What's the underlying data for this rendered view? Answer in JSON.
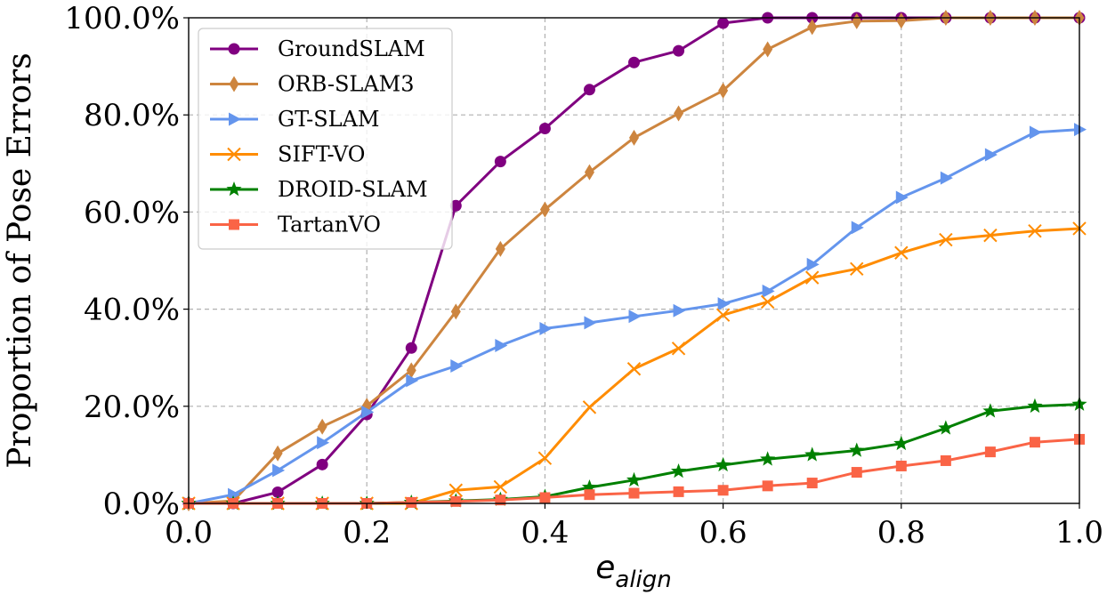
{
  "chart_data": {
    "type": "line",
    "title": "",
    "xlabel": "e",
    "xlabel_subscript": "align",
    "ylabel": "Proportion of Pose Errors",
    "xlim": [
      0.0,
      1.0
    ],
    "ylim": [
      0,
      100
    ],
    "x_ticks": [
      0.0,
      0.2,
      0.4,
      0.6,
      0.8,
      1.0
    ],
    "x_tick_labels": [
      "0.0",
      "0.2",
      "0.4",
      "0.6",
      "0.8",
      "1.0"
    ],
    "y_ticks": [
      0,
      20,
      40,
      60,
      80,
      100
    ],
    "y_tick_labels": [
      "0.0%",
      "20.0%",
      "40.0%",
      "60.0%",
      "80.0%",
      "100.0%"
    ],
    "grid": true,
    "legend_position": "top-left",
    "x": [
      0.0,
      0.05,
      0.1,
      0.15,
      0.2,
      0.25,
      0.3,
      0.35,
      0.4,
      0.45,
      0.5,
      0.55,
      0.6,
      0.65,
      0.7,
      0.75,
      0.8,
      0.85,
      0.9,
      0.95,
      1.0
    ],
    "series": [
      {
        "name": "GroundSLAM",
        "color": "#800080",
        "marker": "circle",
        "x": [
          0.0,
          0.05,
          0.1,
          0.15,
          0.2,
          0.25,
          0.3,
          0.35,
          0.4,
          0.45,
          0.5,
          0.55,
          0.6,
          0.65,
          0.7,
          0.75,
          0.8,
          0.85,
          0.9,
          0.95,
          1.0
        ],
        "values": [
          0,
          0,
          2.3,
          8,
          18.3,
          32,
          61.3,
          70.4,
          77.2,
          85.2,
          90.8,
          93.2,
          98.9,
          100,
          100,
          100,
          100,
          100,
          100,
          100,
          100
        ]
      },
      {
        "name": "ORB-SLAM3",
        "color": "#cd853f",
        "marker": "thin_diamond",
        "x": [
          0.0,
          0.05,
          0.1,
          0.15,
          0.2,
          0.25,
          0.3,
          0.35,
          0.4,
          0.45,
          0.5,
          0.55,
          0.6,
          0.65,
          0.7,
          0.75,
          0.8,
          0.85,
          0.9,
          0.95,
          1.0
        ],
        "values": [
          0,
          0.5,
          10.3,
          15.8,
          20.1,
          27.4,
          39.5,
          52.4,
          60.5,
          68.2,
          75.3,
          80.3,
          85,
          93.5,
          98.1,
          99.3,
          99.4,
          100,
          100,
          100,
          100
        ]
      },
      {
        "name": "GT-SLAM",
        "color": "#6495ed",
        "marker": "triangle_right",
        "x": [
          0.0,
          0.05,
          0.1,
          0.15,
          0.2,
          0.25,
          0.3,
          0.35,
          0.4,
          0.45,
          0.5,
          0.55,
          0.6,
          0.65,
          0.7,
          0.75,
          0.8,
          0.85,
          0.9,
          0.95,
          1.0
        ],
        "values": [
          0,
          1.8,
          6.8,
          12.5,
          18.8,
          25.3,
          28.3,
          32.5,
          36,
          37.2,
          38.5,
          39.7,
          41.1,
          43.7,
          49.2,
          56.8,
          63,
          67,
          71.8,
          76.4,
          77
        ]
      },
      {
        "name": "SIFT-VO",
        "color": "#ff8c00",
        "marker": "x",
        "x": [
          0.0,
          0.05,
          0.1,
          0.15,
          0.2,
          0.25,
          0.3,
          0.35,
          0.4,
          0.45,
          0.5,
          0.55,
          0.6,
          0.65,
          0.7,
          0.75,
          0.8,
          0.85,
          0.9,
          0.95,
          1.0
        ],
        "values": [
          0,
          0,
          0,
          0,
          0,
          0,
          2.7,
          3.4,
          9.3,
          19.8,
          27.7,
          31.9,
          38.8,
          41.5,
          46.5,
          48.3,
          51.6,
          54.3,
          55.2,
          56.1,
          56.6
        ]
      },
      {
        "name": "DROID-SLAM",
        "color": "#008000",
        "marker": "star",
        "x": [
          0.0,
          0.05,
          0.1,
          0.15,
          0.2,
          0.25,
          0.3,
          0.35,
          0.4,
          0.45,
          0.5,
          0.55,
          0.6,
          0.65,
          0.7,
          0.75,
          0.8,
          0.85,
          0.9,
          0.95,
          1.0
        ],
        "values": [
          0,
          0,
          0,
          0,
          0,
          0.2,
          0.5,
          0.8,
          1.4,
          3.3,
          4.8,
          6.6,
          7.9,
          9.1,
          10,
          10.9,
          12.3,
          15.5,
          19,
          20,
          20.4
        ]
      },
      {
        "name": "TartanVO",
        "color": "#fa6446",
        "marker": "square",
        "x": [
          0.0,
          0.05,
          0.1,
          0.15,
          0.2,
          0.25,
          0.3,
          0.35,
          0.4,
          0.45,
          0.5,
          0.55,
          0.6,
          0.65,
          0.7,
          0.75,
          0.8,
          0.85,
          0.9,
          0.95,
          1.0
        ],
        "values": [
          0,
          0,
          0,
          0,
          0,
          0.2,
          0.4,
          0.7,
          1.2,
          1.8,
          2.1,
          2.4,
          2.7,
          3.6,
          4.2,
          6.4,
          7.7,
          8.8,
          10.6,
          12.6,
          13.2
        ]
      }
    ]
  }
}
